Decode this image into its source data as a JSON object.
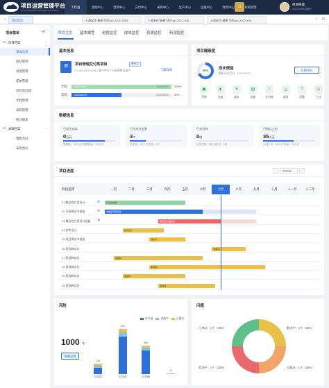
{
  "app": {
    "title": "项目运营管理平台",
    "subtitle": "Project Operations Management Platform"
  },
  "topnav": [
    "工作台",
    "流程中心",
    "营销中心",
    "交付中心",
    "采购中心",
    "生产中心",
    "运维中心",
    "财务中心",
    "系统管理"
  ],
  "user": {
    "name": "项目经理",
    "date": "2022/06/08 星期三"
  },
  "page_tabs": [
    "项目首页",
    "上海安住\"基建\"项目-pp-2022-1083...",
    "上海安住\"基建\"项目-pp-2022-108...",
    "上海安住\"基建\"项目-pp-2022-108..."
  ],
  "sidebar": {
    "title": "项目菜单",
    "groups": [
      {
        "label": "项目档案",
        "items": [
          "基本信息",
          "团队管理",
          "进度管理",
          "成本管理",
          "风险及问题",
          "文档管理",
          "采购管理",
          "统计报表"
        ]
      },
      {
        "label": "关联档案",
        "items": [
          "销售合同",
          "采购合同"
        ]
      }
    ]
  },
  "sub_tabs": [
    "项目主页",
    "基本属性",
    "进度监控",
    "成本监控",
    "资源监控",
    "利润监控"
  ],
  "basic_info": {
    "title": "基本信息",
    "project_icon": "项",
    "project_name": "项目管理交付类项目",
    "status_badge": "进行中",
    "meta": "PJ-20210717-002 / 客户甲方 / 行业销售及客户",
    "detail_link": "了解详情",
    "plan_label": "计划",
    "actual_label": "实际",
    "plan_start": "2022/04/10",
    "plan_end": "2022/05/10",
    "plan_pct": "100%",
    "actual_start": "2022/04/15",
    "actual_end": "2022/06/30",
    "actual_pct": "50%",
    "plan_fill": 1.0,
    "actual_fill": 0.5
  },
  "health": {
    "title": "项目健康度",
    "score": "68%",
    "score_value": 0.68,
    "status": "尚未便能",
    "updated": "最新评价时间：2022/06/08",
    "action": "立即评价",
    "items": [
      {
        "icon": "folder-icon",
        "glyph": "▣",
        "label": "资源"
      },
      {
        "icon": "hourglass-icon",
        "glyph": "⧗",
        "label": "进度"
      },
      {
        "icon": "coin-icon",
        "glyph": "¥",
        "label": "成本"
      },
      {
        "icon": "document-icon",
        "glyph": "▤",
        "label": "质量"
      },
      {
        "icon": "delivery-icon",
        "glyph": "⇪",
        "label": "交付物"
      },
      {
        "icon": "warning-icon",
        "glyph": "△",
        "label": "风险"
      },
      {
        "icon": "question-icon",
        "glyph": "?",
        "label": "问题"
      },
      {
        "icon": "hours-icon",
        "glyph": "◷",
        "label": "工时"
      }
    ]
  },
  "data_info": {
    "title": "数据信息",
    "stats": [
      {
        "label": "已发生成本",
        "value": "0",
        "unit": "万元",
        "foot": "预算额：100万元  预算剩余：20万元",
        "fill": 0.8
      },
      {
        "label": "已完成任务数",
        "value": "3",
        "unit": "个",
        "foot": "总任务：10个  已完成：3个",
        "fill": 0.3
      },
      {
        "label": "已交付物",
        "value": "0",
        "unit": "份",
        "foot": "总交付物：0份  未交付：0份",
        "fill": 0.0
      },
      {
        "label": "已确认工时",
        "value": "35",
        "unit": "人天",
        "foot": "计划工时：60人天  剩余：25人天",
        "fill": 0.58
      }
    ]
  },
  "gantt": {
    "title": "项目进度",
    "year": "2022年",
    "prev": "‹",
    "next": "›",
    "column_head": "阶段名称",
    "months": [
      "一月",
      "二月",
      "三月",
      "四月",
      "五月",
      "六月",
      "七月",
      "八月",
      "九月",
      "十月",
      "十一月",
      "十二月"
    ],
    "current_month_index": 6,
    "rows": [
      {
        "name": "01.概念性方案设计",
        "mark": "check",
        "bar_label": "已完成方案",
        "start": 0,
        "end": 4.5,
        "color": "#8fd3a7",
        "bg_end": 0
      },
      {
        "name": "02.可研建议书批复",
        "mark": "check",
        "bar_label": "本批复可研方案",
        "start": 0,
        "end": 5.5,
        "color": "#2f6fdc",
        "bg_end": 8.5
      },
      {
        "name": "03.概念性方案设计批复",
        "mark": "flag",
        "bar_label": "概念性方案批复",
        "start": 3,
        "end": 6.5,
        "color": "#e8686b",
        "bg_end": 8.5
      },
      {
        "name": "04.初步设计",
        "mark": "",
        "bar_label": "初步设计",
        "start": 1,
        "end": 3.3,
        "color": "#e9c14a",
        "bg_end": 0
      },
      {
        "name": "05.项目建议书批复",
        "mark": "",
        "bar_label": "建议书",
        "start": 2.5,
        "end": 4.5,
        "color": "#e9c14a",
        "bg_end": 0
      },
      {
        "name": "06.里程碑点位",
        "mark": "",
        "bar_label": "里程碑",
        "start": 6,
        "end": 7.9,
        "color": "#e9c14a",
        "bg_end": 0
      },
      {
        "name": "07.里程碑点位",
        "mark": "",
        "bar_label": "里程碑",
        "start": 0.5,
        "end": 5.5,
        "color": "#e9c14a",
        "bg_end": 0
      },
      {
        "name": "08.里程碑点位",
        "mark": "",
        "bar_label": "里程碑",
        "start": 2.5,
        "end": 9,
        "color": "#e9c14a",
        "bg_end": 0
      },
      {
        "name": "09.里程碑点位",
        "mark": "",
        "bar_label": "里程碑",
        "start": 1,
        "end": 4.5,
        "color": "#e9c14a",
        "bg_end": 0
      },
      {
        "name": "10.里程碑点位",
        "mark": "",
        "bar_label": "里程碑",
        "start": 3,
        "end": 6.2,
        "color": "#e9c14a",
        "bg_end": 0
      }
    ]
  },
  "risk": {
    "title": "风险",
    "total": "1000",
    "unit": "个",
    "action": "查看详情",
    "legend": [
      {
        "name": "待开展",
        "color": "#2f6fdc"
      },
      {
        "name": "进展中",
        "color": "#7bc6e8"
      },
      {
        "name": "已解决",
        "color": "#e9c14a"
      }
    ]
  },
  "chart_data": {
    "type": "bar",
    "stacked": true,
    "categories": [
      "已识别",
      "已应对",
      "已关闭"
    ],
    "series": [
      {
        "name": "待开展",
        "values": [
          80,
          500,
          320
        ]
      },
      {
        "name": "进展中",
        "values": [
          30,
          60,
          30
        ]
      },
      {
        "name": "已解决",
        "values": [
          25,
          40,
          30
        ]
      }
    ],
    "totals": [
      135,
      600,
      380
    ],
    "extra_bar": {
      "value": 12
    },
    "ylim": [
      0,
      650
    ]
  },
  "issues": {
    "title": "问题",
    "segments": [
      {
        "label": "已关闭",
        "text": "1个（25%）",
        "color": "#e9c14a",
        "value": 0.25
      },
      {
        "label": "解决中",
        "text": "1个（25%）",
        "color": "#f0a46a",
        "value": 0.25
      },
      {
        "label": "已解决",
        "text": "1个（25%）",
        "color": "#e8686b",
        "value": 0.25
      },
      {
        "label": "验证中",
        "text": "1个（25%）",
        "color": "#5fbf8b",
        "value": 0.25
      }
    ]
  }
}
